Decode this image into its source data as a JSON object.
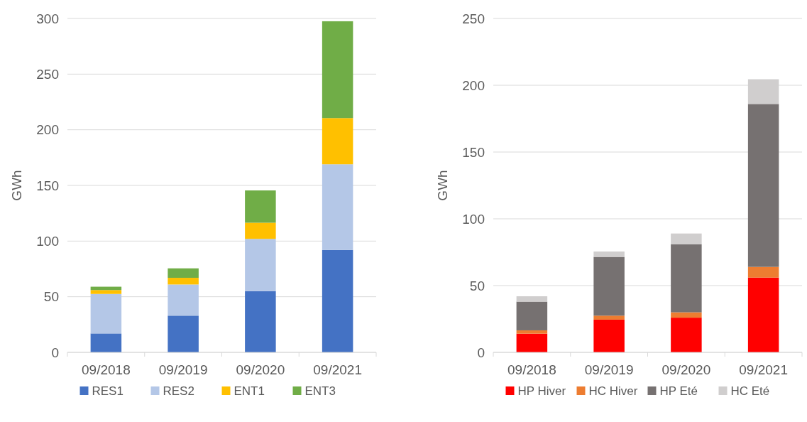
{
  "chart_data": [
    {
      "type": "bar",
      "stacked": true,
      "ylabel": "GWh",
      "categories": [
        "09/2018",
        "09/2019",
        "09/2020",
        "09/2021"
      ],
      "ylim": [
        0,
        300
      ],
      "yticks": [
        0,
        50,
        100,
        150,
        200,
        250,
        300
      ],
      "grid": "y",
      "legend": "bottom",
      "series": [
        {
          "name": "RES1",
          "color": "#4472c4",
          "values": [
            17,
            33,
            55,
            92
          ]
        },
        {
          "name": "RES2",
          "color": "#b4c7e7",
          "values": [
            35.5,
            28,
            47,
            77
          ]
        },
        {
          "name": "ENT1",
          "color": "#ffc000",
          "values": [
            3.5,
            6,
            14.5,
            41.5
          ]
        },
        {
          "name": "ENT3",
          "color": "#70ad47",
          "values": [
            3,
            8.5,
            29,
            87
          ]
        }
      ]
    },
    {
      "type": "bar",
      "stacked": true,
      "ylabel": "GWh",
      "categories": [
        "09/2018",
        "09/2019",
        "09/2020",
        "09/2021"
      ],
      "ylim": [
        0,
        250
      ],
      "yticks": [
        0,
        50,
        100,
        150,
        200,
        250
      ],
      "grid": "y",
      "legend": "bottom",
      "series": [
        {
          "name": "HP Hiver",
          "color": "#ff0000",
          "values": [
            14,
            24.5,
            26,
            56
          ]
        },
        {
          "name": "HC Hiver",
          "color": "#ed7d31",
          "values": [
            2.5,
            3,
            4,
            8
          ]
        },
        {
          "name": "HP Eté",
          "color": "#767171",
          "values": [
            21.5,
            44,
            51,
            122
          ]
        },
        {
          "name": "HC Eté",
          "color": "#d0cece",
          "values": [
            4,
            4,
            8,
            18.5
          ]
        }
      ]
    }
  ]
}
